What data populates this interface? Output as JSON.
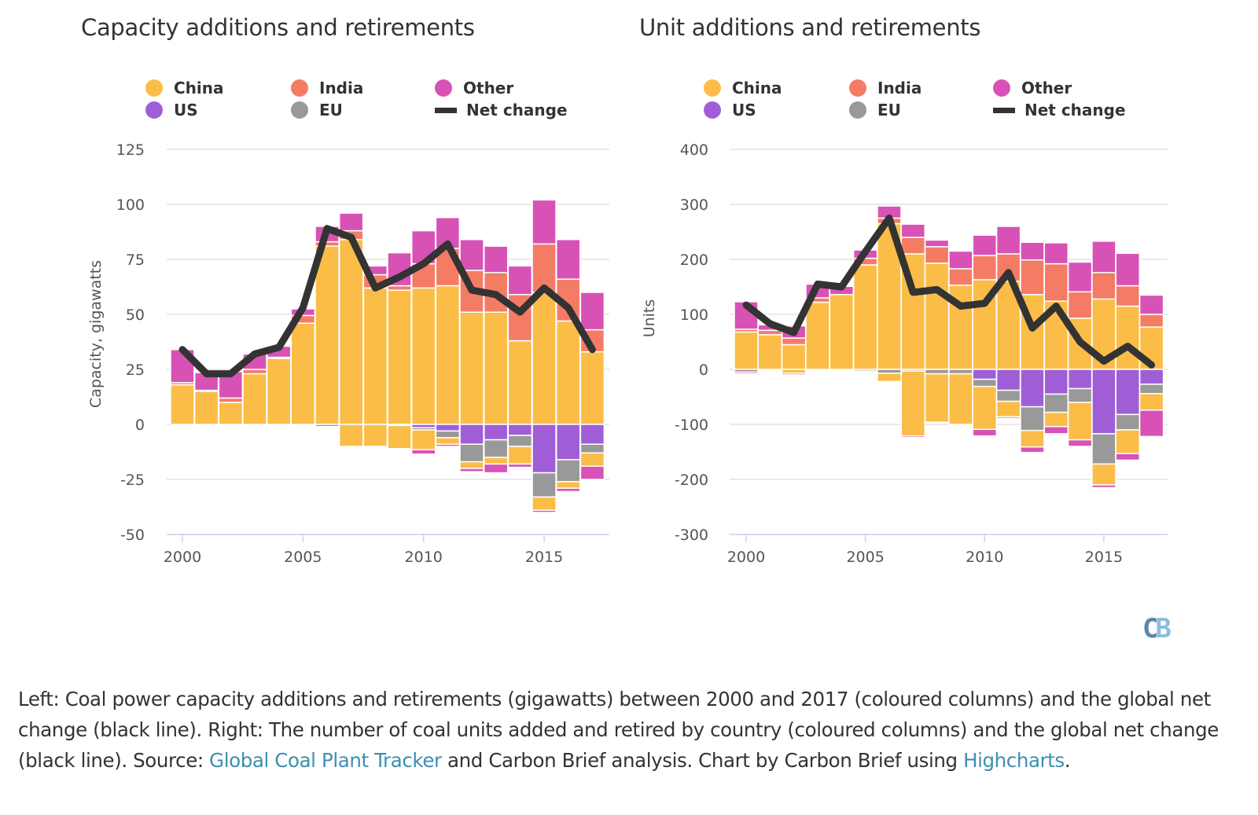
{
  "colors": {
    "China": "#fbbd47",
    "India": "#f47c65",
    "Other": "#d852b6",
    "US": "#a05ed6",
    "EU": "#999999",
    "Net change": "#333333"
  },
  "legend": [
    {
      "label": "China",
      "series": "China",
      "type": "dot"
    },
    {
      "label": "US",
      "series": "US",
      "type": "dot"
    },
    {
      "label": "India",
      "series": "India",
      "type": "dot"
    },
    {
      "label": "EU",
      "series": "EU",
      "type": "dot"
    },
    {
      "label": "Other",
      "series": "Other",
      "type": "dot"
    },
    {
      "label": "Net change",
      "series": "Net change",
      "type": "line"
    }
  ],
  "chart_data": [
    {
      "type": "bar",
      "stacked": true,
      "title": "Capacity additions and retirements",
      "xlabel": "",
      "ylabel": "Capacity, gigawatts",
      "ylim": [
        -50,
        125
      ],
      "yticks": [
        125,
        100,
        75,
        50,
        25,
        0,
        -25,
        -50
      ],
      "xticks": [
        2000,
        2005,
        2010,
        2015
      ],
      "grid": true,
      "legend_position": "top",
      "categories": [
        2000,
        2001,
        2002,
        2003,
        2004,
        2005,
        2006,
        2007,
        2008,
        2009,
        2010,
        2011,
        2012,
        2013,
        2014,
        2015,
        2016,
        2017
      ],
      "positive_series": [
        {
          "name": "China",
          "values": [
            18,
            15,
            10,
            23,
            30,
            46,
            81,
            84,
            62,
            61,
            62,
            63,
            51,
            51,
            38,
            60,
            47,
            33
          ]
        },
        {
          "name": "India",
          "values": [
            1,
            0.5,
            2,
            2,
            0.5,
            3.5,
            2,
            4,
            6,
            2,
            11,
            17,
            19,
            18,
            21,
            22,
            19,
            10
          ]
        },
        {
          "name": "Other",
          "values": [
            15,
            8,
            12,
            7,
            5,
            3,
            7,
            8,
            4,
            15,
            15,
            14,
            14,
            12,
            13,
            20,
            18,
            17
          ]
        }
      ],
      "negative_series": [
        {
          "name": "US",
          "values": [
            0,
            0,
            0,
            0,
            0,
            0,
            0,
            0,
            0,
            0,
            -1.5,
            -3,
            -9,
            -7,
            -5,
            -22,
            -16,
            -9
          ]
        },
        {
          "name": "EU",
          "values": [
            0,
            0,
            0,
            0,
            0,
            0,
            -1,
            0,
            0,
            -0.5,
            -1,
            -3,
            -8,
            -8,
            -5,
            -11,
            -10,
            -4
          ]
        },
        {
          "name": "China",
          "values": [
            0,
            0,
            0,
            0,
            0,
            0,
            0,
            -10,
            -10,
            -10.5,
            -9,
            -3,
            -3,
            -3,
            -8,
            -6,
            -3,
            -6
          ]
        },
        {
          "name": "Other",
          "values": [
            0,
            0,
            0,
            0,
            0,
            0,
            0,
            0,
            0,
            0,
            -2,
            -1,
            -1.5,
            -4,
            -1.5,
            -1,
            -1.5,
            -6
          ]
        }
      ],
      "line_series": {
        "name": "Net change",
        "values": [
          34,
          23,
          23,
          32,
          35,
          53,
          89,
          85,
          62,
          67,
          73,
          82,
          61,
          59,
          51,
          62,
          53,
          34
        ]
      }
    },
    {
      "type": "bar",
      "stacked": true,
      "title": "Unit additions and retirements",
      "xlabel": "",
      "ylabel": "Units",
      "ylim": [
        -300,
        400
      ],
      "yticks": [
        400,
        300,
        200,
        100,
        0,
        -100,
        -200,
        -300
      ],
      "xticks": [
        2000,
        2005,
        2010,
        2015
      ],
      "grid": true,
      "legend_position": "top",
      "categories": [
        2000,
        2001,
        2002,
        2003,
        2004,
        2005,
        2006,
        2007,
        2008,
        2009,
        2010,
        2011,
        2012,
        2013,
        2014,
        2015,
        2016,
        2017
      ],
      "positive_series": [
        {
          "name": "China",
          "values": [
            68,
            63,
            45,
            122,
            136,
            190,
            265,
            210,
            193,
            153,
            163,
            160,
            136,
            124,
            93,
            128,
            115,
            77
          ]
        },
        {
          "name": "India",
          "values": [
            5,
            8,
            12,
            8,
            0,
            12,
            10,
            30,
            30,
            30,
            44,
            50,
            63,
            68,
            48,
            48,
            37,
            23
          ]
        },
        {
          "name": "Other",
          "values": [
            50,
            10,
            22,
            25,
            15,
            15,
            22,
            24,
            12,
            32,
            37,
            50,
            32,
            38,
            54,
            57,
            59,
            35
          ]
        }
      ],
      "negative_series": [
        {
          "name": "US",
          "values": [
            0,
            0,
            0,
            0,
            0,
            0,
            0,
            0,
            0,
            0,
            -18,
            -38,
            -68,
            -45,
            -35,
            -117,
            -82,
            -27
          ]
        },
        {
          "name": "EU",
          "values": [
            -5,
            0,
            0,
            0,
            0,
            -3,
            -7,
            -3,
            -8,
            -8,
            -13,
            -20,
            -43,
            -33,
            -25,
            -55,
            -28,
            -17
          ]
        },
        {
          "name": "China",
          "values": [
            0,
            0,
            -7,
            0,
            0,
            0,
            -15,
            -118,
            -88,
            -92,
            -78,
            -28,
            -30,
            -26,
            -68,
            -38,
            -43,
            -30
          ]
        },
        {
          "name": "Other",
          "values": [
            -3,
            0,
            -3,
            0,
            0,
            0,
            0,
            -3,
            0,
            0,
            -12,
            -3,
            -10,
            -13,
            -12,
            -5,
            -12,
            -48
          ]
        }
      ],
      "line_series": {
        "name": "Net change",
        "values": [
          117,
          83,
          67,
          155,
          150,
          214,
          275,
          140,
          145,
          115,
          120,
          176,
          75,
          115,
          50,
          15,
          42,
          8
        ]
      }
    }
  ],
  "logo": {
    "c": "C",
    "b": "B"
  },
  "caption": {
    "part1": "Left: Coal power capacity additions and retirements (gigawatts) between 2000 and 2017 (coloured columns) and the global net change (black line). Right: The number of coal units added and retired by country (coloured columns) and the global net change (black line). Source: ",
    "link1": "Global Coal Plant Tracker",
    "part2": " and Carbon Brief analysis. Chart by Carbon Brief using ",
    "link2": "Highcharts",
    "part3": "."
  }
}
